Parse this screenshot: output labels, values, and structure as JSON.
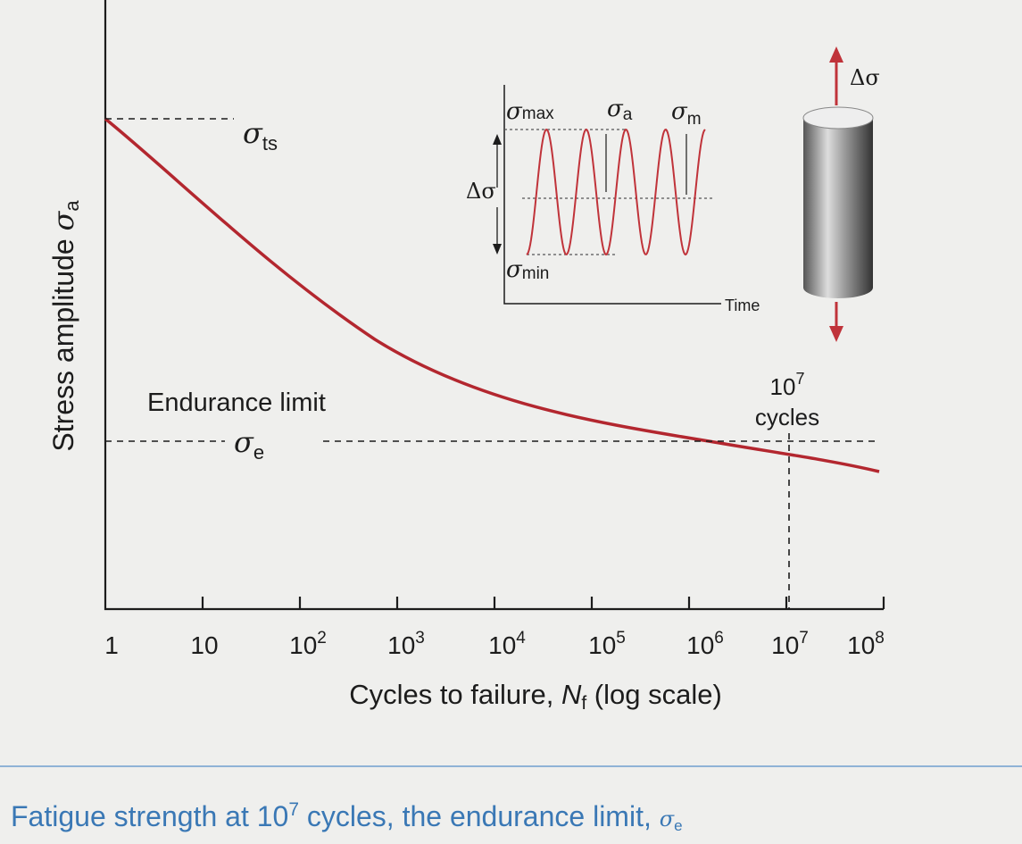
{
  "y_axis": {
    "title": "Stress amplitude",
    "symbol": "σ",
    "subscript": "a"
  },
  "x_axis": {
    "title_start": "Cycles to failure, ",
    "symbol": "N",
    "subscript": "f",
    "title_end": " (log scale)",
    "ticks": [
      {
        "base": "1"
      },
      {
        "base": "10"
      },
      {
        "base": "10",
        "exp": "2"
      },
      {
        "base": "10",
        "exp": "3"
      },
      {
        "base": "10",
        "exp": "4"
      },
      {
        "base": "10",
        "exp": "5"
      },
      {
        "base": "10",
        "exp": "6"
      },
      {
        "base": "10",
        "exp": "7"
      },
      {
        "base": "10",
        "exp": "8"
      }
    ]
  },
  "labels": {
    "uts": {
      "symbol": "σ",
      "subscript": "ts"
    },
    "endurance_limit": "Endurance limit",
    "endurance": {
      "symbol": "σ",
      "subscript": "e"
    },
    "cycles_annotation": {
      "base": "10",
      "exp": "7",
      "word": "cycles"
    }
  },
  "inset": {
    "max": {
      "symbol": "σ",
      "subscript": "max"
    },
    "amp": {
      "symbol": "σ",
      "subscript": "a"
    },
    "mean": {
      "symbol": "σ",
      "subscript": "m"
    },
    "range": "Δσ",
    "min": {
      "symbol": "σ",
      "subscript": "min"
    },
    "time": "Time"
  },
  "specimen_label": "Δσ",
  "caption": {
    "start": "Fatigue strength at 10",
    "exp": "7",
    "middle": " cycles, the endurance limit, ",
    "symbol": "σ",
    "subscript": "e"
  }
}
